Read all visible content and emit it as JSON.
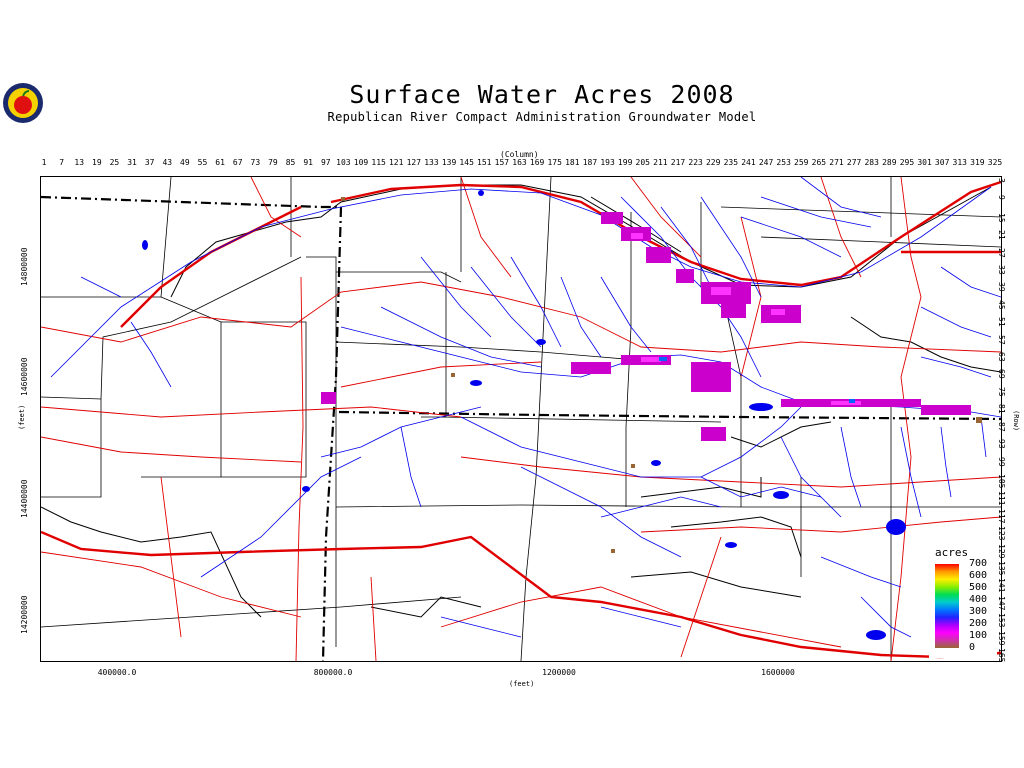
{
  "header": {
    "title": "Surface Water Acres 2008",
    "subtitle": "Republican River Compact Administration Groundwater Model",
    "logo_icon": "apple-seal-logo-icon"
  },
  "axes": {
    "column_title": "(Column)",
    "column_ticks": [
      "1",
      "7",
      "13",
      "19",
      "25",
      "31",
      "37",
      "43",
      "49",
      "55",
      "61",
      "67",
      "73",
      "79",
      "85",
      "91",
      "97",
      "103",
      "109",
      "115",
      "121",
      "127",
      "133",
      "139",
      "145",
      "151",
      "157",
      "163",
      "169",
      "175",
      "181",
      "187",
      "193",
      "199",
      "205",
      "211",
      "217",
      "223",
      "229",
      "235",
      "241",
      "247",
      "253",
      "259",
      "265",
      "271",
      "277",
      "283",
      "289",
      "295",
      "301",
      "307",
      "313",
      "319",
      "325"
    ],
    "x_title": "(feet)",
    "x_ticks": [
      "400000.0",
      "800000.0",
      "1200000",
      "1600000"
    ],
    "y_title": "(feet)",
    "y_ticks": [
      "14800000",
      "14600000",
      "14400000",
      "14200000"
    ],
    "row_title": "(Row)",
    "row_ticks": [
      "3",
      "9",
      "15",
      "21",
      "27",
      "33",
      "39",
      "45",
      "51",
      "57",
      "63",
      "69",
      "75",
      "81",
      "87",
      "93",
      "99",
      "105",
      "111",
      "117",
      "123",
      "129",
      "135",
      "141",
      "147",
      "153",
      "159",
      "165"
    ]
  },
  "legend": {
    "title": "acres",
    "ticks": [
      "700",
      "600",
      "500",
      "400",
      "300",
      "200",
      "100",
      "0"
    ]
  },
  "colors": {
    "rivers": "#0000ff",
    "roads": "#ff0000",
    "boundaries": "#000000",
    "acres_high": "#ff00ff",
    "acres_low": "#996633"
  }
}
